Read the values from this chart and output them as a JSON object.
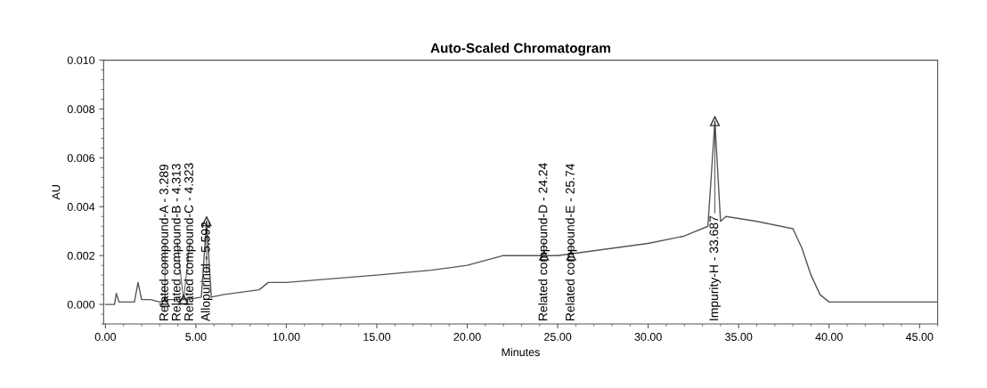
{
  "chart_data": {
    "type": "line",
    "title": "Auto-Scaled Chromatogram",
    "xlabel": "Minutes",
    "ylabel": "AU",
    "x": [
      0,
      0.5,
      0.6,
      0.75,
      1.0,
      1.6,
      1.8,
      2.0,
      2.5,
      3.0,
      3.5,
      4.5,
      5.3,
      5.592,
      5.85,
      6.5,
      8.5,
      9.0,
      9.3,
      10.0,
      15.0,
      18.0,
      20.0,
      22.0,
      25.0,
      30.0,
      32.0,
      33.3,
      33.687,
      34.0,
      34.3,
      36.0,
      38.0,
      38.5,
      39.0,
      39.5,
      40.0,
      42.0,
      46.0
    ],
    "values": [
      0,
      0,
      0.00045,
      0.0001,
      0.0001,
      0.0001,
      0.0009,
      0.0002,
      0.0002,
      0.0001,
      0.0002,
      0.0002,
      0.0003,
      0.0034,
      0.0003,
      0.0004,
      0.0006,
      0.0009,
      0.0009,
      0.0009,
      0.0012,
      0.0014,
      0.0016,
      0.002,
      0.002,
      0.0025,
      0.0028,
      0.0032,
      0.0075,
      0.0034,
      0.0036,
      0.0034,
      0.0031,
      0.0023,
      0.0012,
      0.0004,
      0.0001,
      0.0001,
      0.0001
    ],
    "color": "#555555",
    "xlim": [
      -0.1,
      46
    ],
    "ylim": [
      -0.0008,
      0.01
    ],
    "xticks": [
      {
        "value": 0,
        "label": "0.00"
      },
      {
        "value": 5,
        "label": "5.00"
      },
      {
        "value": 10,
        "label": "10.00"
      },
      {
        "value": 15,
        "label": "15.00"
      },
      {
        "value": 20,
        "label": "20.00"
      },
      {
        "value": 25,
        "label": "25.00"
      },
      {
        "value": 30,
        "label": "30.00"
      },
      {
        "value": 35,
        "label": "35.00"
      },
      {
        "value": 40,
        "label": "40.00"
      },
      {
        "value": 45,
        "label": "45.00"
      }
    ],
    "yticks": [
      {
        "value": 0,
        "label": "0.000"
      },
      {
        "value": 0.002,
        "label": "0.002"
      },
      {
        "value": 0.004,
        "label": "0.004"
      },
      {
        "value": 0.006,
        "label": "0.006"
      },
      {
        "value": 0.008,
        "label": "0.008"
      },
      {
        "value": 0.01,
        "label": "0.010"
      }
    ],
    "grid": false,
    "legend": false,
    "marker": "none",
    "line_style": "solid",
    "annotations": [
      {
        "text": "Related compound-A - 3.289",
        "x": 3.289,
        "y": 0.0001
      },
      {
        "text": "Related compound-B - 4.313",
        "x": 4.313,
        "y": 0.0002
      },
      {
        "text": "Related compound-C - 4.323",
        "x": 4.323,
        "y": 0.0002
      },
      {
        "text": "Allopurinol - 5.592",
        "x": 5.592,
        "y": 0.0034
      },
      {
        "text": "Related compound-D - 24.24",
        "x": 24.24,
        "y": 0.002
      },
      {
        "text": "Related compound-E - 25.74",
        "x": 25.74,
        "y": 0.002
      },
      {
        "text": "Impurity-H - 33.687",
        "x": 33.687,
        "y": 0.0075
      }
    ]
  }
}
